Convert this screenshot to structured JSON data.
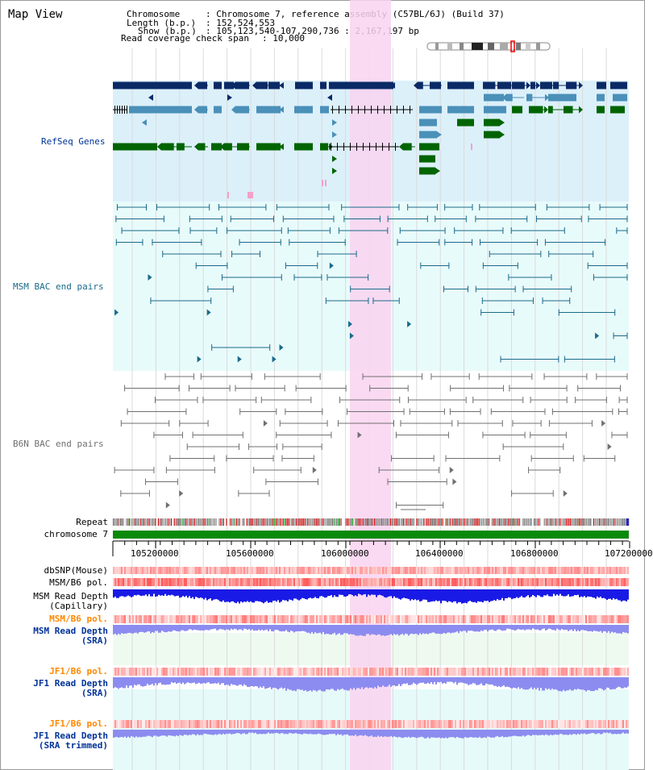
{
  "header": {
    "title": "Map View",
    "chromosome_label": "Chromosome",
    "chromosome_value": ": Chromosome 7, reference assembly (C57BL/6J) (Build 37)",
    "length_label": "Length (b.p.)",
    "length_value": ": 152,524,553",
    "show_label": "Show (b.p.)",
    "show_value": ": 105,123,540-107,290,736 : 2,167,197 bp",
    "span_label": "Read coverage check span",
    "span_value": ": 10,000"
  },
  "tracks": {
    "refseq": "RefSeq Genes",
    "msm_bac": "MSM BAC end pairs",
    "b6n_bac": "B6N BAC end pairs",
    "repeat": "Repeat",
    "chromosome": "chromosome 7",
    "dbsnp": "dbSNP(Mouse)",
    "msm_pol1": "MSM/B6 pol.",
    "msm_cap_1": "MSM Read Depth",
    "msm_cap_2": "(Capillary)",
    "msm_pol2": "MSM/B6 pol.",
    "msm_sra_1": "MSM Read Depth",
    "msm_sra_2": "(SRA)",
    "jf1_pol1": "JF1/B6 pol.",
    "jf1_sra_1": "JF1 Read Depth",
    "jf1_sra_2": "(SRA)",
    "jf1_pol2": "JF1/B6 pol.",
    "jf1_trim_1": "JF1 Read Depth",
    "jf1_trim_2": "(SRA trimmed)"
  },
  "axis": {
    "ticks": [
      "105200000",
      "105600000",
      "106000000",
      "106400000",
      "106800000",
      "107200000"
    ]
  },
  "colors": {
    "highlight": "#f9d4f0",
    "refseq_bg": "#dcf0fa",
    "msm_bg": "#e8fbfb",
    "gene_dark": "#0a2a66",
    "gene_mid": "#4a90b8",
    "gene_green": "#006400",
    "bac_msm": "#1a6a8a",
    "bac_b6n": "#707070",
    "label_navy": "#003399",
    "label_orange": "#ff8800"
  }
}
